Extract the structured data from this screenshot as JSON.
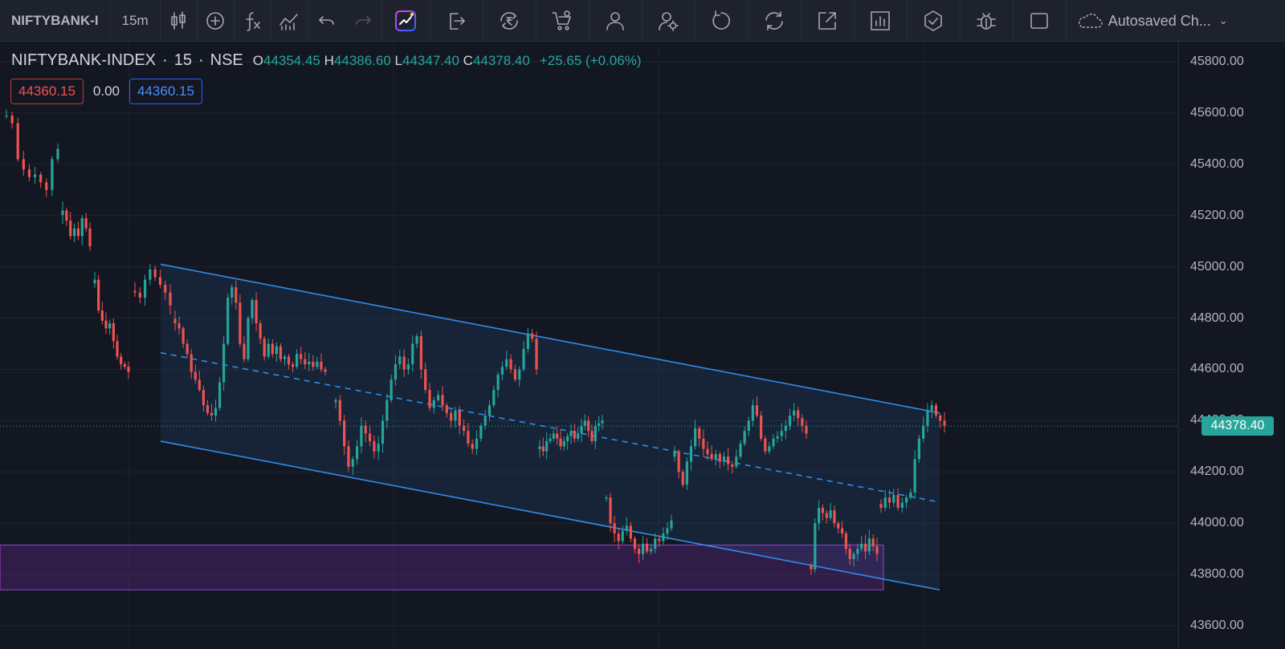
{
  "toolbar": {
    "symbol": "NIFTYBANK-I",
    "interval": "15m",
    "autosave_label": "Autosaved Ch...",
    "icons": [
      "candles-icon",
      "plus-circle-icon",
      "fx-icon",
      "indicators-icon",
      "undo-icon",
      "redo-icon",
      "ai-chart-icon",
      "exit-icon",
      "rupee-refresh-icon",
      "cart-icon",
      "user-icon",
      "user-settings-icon",
      "rotate-icon",
      "sync-icon",
      "expand-icon",
      "report-icon",
      "shield-check-icon",
      "bug-icon",
      "square-icon",
      "cloud-icon",
      "chevron-down-icon"
    ]
  },
  "legend": {
    "symbol": "NIFTYBANK-INDEX",
    "separator": "·",
    "timeframe": "15",
    "exchange": "NSE",
    "open_label": "O",
    "open": "44354.45",
    "high_label": "H",
    "high": "44386.60",
    "low_label": "L",
    "low": "44347.40",
    "close_label": "C",
    "close": "44378.40",
    "change": "+25.65 (+0.06%)"
  },
  "order": {
    "sell": "44360.15",
    "spread": "0.00",
    "buy": "44360.15"
  },
  "price_axis": {
    "ticks": [
      "45800.00",
      "45600.00",
      "45400.00",
      "45200.00",
      "45000.00",
      "44800.00",
      "44600.00",
      "44400.00",
      "44200.00",
      "44000.00",
      "43800.00",
      "43600.00"
    ],
    "last_price": "44378.40"
  },
  "colors": {
    "up": "#26a69a",
    "down": "#ef5350",
    "channel": "#2f8ceb",
    "zone": "#7b2fa8",
    "background": "#131722"
  },
  "chart_data": {
    "type": "candlestick",
    "y_range": [
      43600,
      45800
    ],
    "channel": {
      "upper": [
        45010,
        44430
      ],
      "lower": [
        44320,
        43740
      ],
      "mid": [
        44665,
        44085
      ]
    },
    "demand_zone": [
      43740,
      43915
    ],
    "series": [
      {
        "c": [
          45590,
          45560,
          45420,
          45380,
          45350,
          45360,
          45330,
          45300,
          45420,
          45460
        ]
      },
      {
        "c": [
          45220,
          45180,
          45120,
          45150,
          45120,
          45190,
          45150,
          45080
        ]
      },
      {
        "c": [
          44950,
          44830,
          44790,
          44760,
          44780,
          44710,
          44650,
          44620,
          44610,
          44590
        ]
      },
      {
        "c": [
          44900,
          44880,
          44950,
          44990,
          44960,
          44930,
          44900,
          44850
        ]
      },
      {
        "c": [
          44780,
          44760,
          44700,
          44660,
          44590,
          44560,
          44520,
          44460,
          44430,
          44420,
          44450,
          44550,
          44700,
          44880,
          44920,
          44860,
          44700,
          44640,
          44800,
          44870,
          44780,
          44720,
          44650,
          44700,
          44660,
          44690,
          44640,
          44650,
          44620,
          44610,
          44660,
          44640,
          44620,
          44630,
          44610,
          44630,
          44600,
          44590
        ]
      },
      {
        "c": [
          44480,
          44400,
          44300,
          44220,
          44250,
          44300,
          44380,
          44350,
          44320,
          44280,
          44310,
          44400,
          44480,
          44560,
          44620,
          44650,
          44600,
          44620,
          44700,
          44730,
          44600,
          44520,
          44450,
          44480,
          44500,
          44460,
          44430,
          44400,
          44440,
          44380,
          44360,
          44310,
          44290,
          44330,
          44380,
          44420,
          44460,
          44520,
          44580,
          44610,
          44640,
          44600,
          44560,
          44600,
          44680,
          44740,
          44720,
          44600
        ]
      },
      {
        "c": [
          44300,
          44280,
          44320,
          44330,
          44350,
          44330,
          44300,
          44320,
          44340,
          44360,
          44330,
          44350,
          44380,
          44400,
          44360,
          44320,
          44380,
          44390,
          44400
        ]
      },
      {
        "c": [
          44100,
          44000,
          43960,
          43930,
          43970,
          43990,
          43940,
          43900,
          43880,
          43920,
          43890,
          43900,
          43940,
          43930,
          43960,
          43980,
          44010
        ]
      },
      {
        "c": [
          44280,
          44200,
          44150,
          44240,
          44300,
          44370,
          44330,
          44290,
          44270,
          44250,
          44270,
          44240,
          44260,
          44230,
          44220,
          44260,
          44310,
          44360,
          44400,
          44460,
          44420,
          44330,
          44280,
          44300,
          44330,
          44340,
          44360,
          44380,
          44420,
          44440,
          44410,
          44380,
          44350
        ]
      },
      {
        "c": [
          43820,
          44000,
          44060,
          44040,
          44020,
          44050,
          44000,
          43980,
          43960,
          43900,
          43860,
          43880,
          43900,
          43920,
          43890,
          43940,
          43910,
          43880
        ]
      },
      {
        "c": [
          44060,
          44100,
          44080,
          44110,
          44060,
          44080,
          44100,
          44120,
          44250,
          44330,
          44380,
          44440,
          44460,
          44420,
          44400,
          44380
        ]
      }
    ]
  }
}
